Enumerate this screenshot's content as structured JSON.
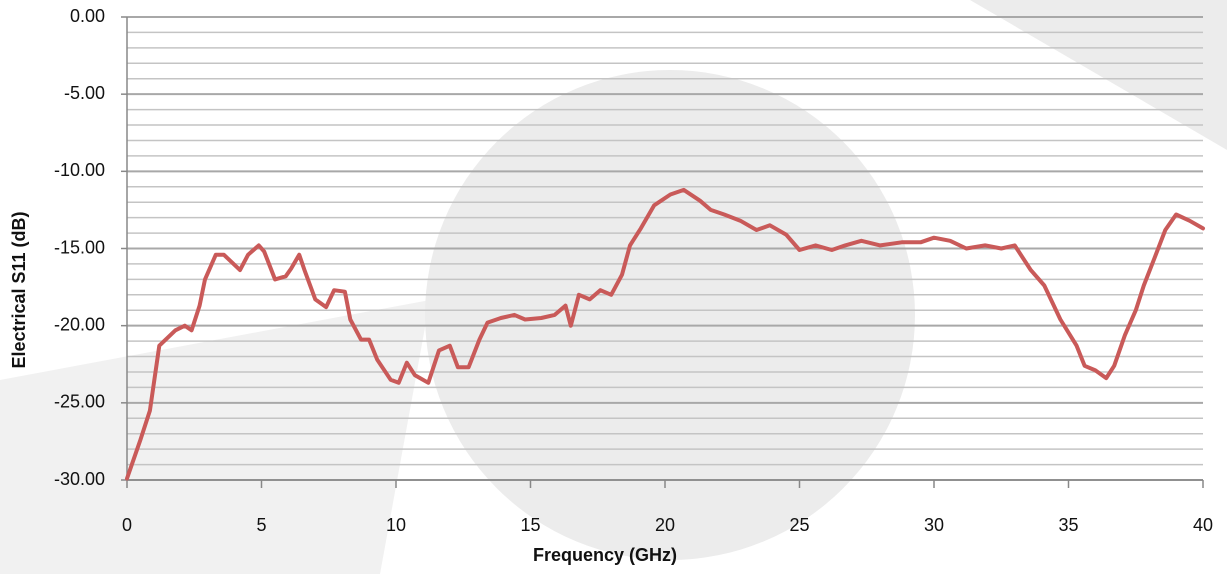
{
  "chart_data": {
    "type": "line",
    "x_label": "Frequency  (GHz)",
    "y_label": "Electrical S11 (dB)",
    "x": [
      0,
      0.5,
      0.85,
      1.2,
      1.8,
      2.15,
      2.4,
      2.7,
      2.9,
      3.3,
      3.6,
      4.2,
      4.5,
      4.9,
      5.1,
      5.5,
      5.9,
      6.1,
      6.4,
      6.6,
      7.0,
      7.4,
      7.7,
      8.1,
      8.3,
      8.7,
      9.0,
      9.3,
      9.8,
      10.1,
      10.4,
      10.7,
      11.2,
      11.6,
      12.0,
      12.3,
      12.7,
      13.1,
      13.4,
      13.9,
      14.4,
      14.8,
      15.4,
      15.9,
      16.3,
      16.5,
      16.8,
      17.2,
      17.6,
      18.0,
      18.4,
      18.7,
      19.1,
      19.6,
      20.2,
      20.7,
      21.3,
      21.7,
      22.2,
      22.8,
      23.4,
      23.9,
      24.5,
      25.0,
      25.6,
      26.2,
      26.7,
      27.3,
      28.0,
      28.8,
      29.5,
      30.0,
      30.6,
      31.2,
      31.9,
      32.5,
      33.0,
      33.6,
      34.1,
      34.7,
      35.3,
      35.6,
      36.0,
      36.4,
      36.7,
      37.1,
      37.5,
      37.8,
      38.2,
      38.6,
      39.0,
      39.5,
      40
    ],
    "values": [
      -29.9,
      -27.4,
      -25.5,
      -21.3,
      -20.3,
      -20.0,
      -20.3,
      -18.7,
      -17.0,
      -15.4,
      -15.4,
      -16.4,
      -15.4,
      -14.8,
      -15.2,
      -17.0,
      -16.8,
      -16.3,
      -15.4,
      -16.4,
      -18.3,
      -18.8,
      -17.7,
      -17.8,
      -19.6,
      -20.9,
      -20.9,
      -22.2,
      -23.5,
      -23.7,
      -22.4,
      -23.2,
      -23.7,
      -21.6,
      -21.3,
      -22.7,
      -22.7,
      -20.9,
      -19.8,
      -19.5,
      -19.3,
      -19.6,
      -19.5,
      -19.3,
      -18.7,
      -20.0,
      -18.0,
      -18.3,
      -17.7,
      -18.0,
      -16.7,
      -14.8,
      -13.7,
      -12.2,
      -11.5,
      -11.2,
      -11.9,
      -12.5,
      -12.8,
      -13.2,
      -13.8,
      -13.5,
      -14.1,
      -15.1,
      -14.8,
      -15.1,
      -14.8,
      -14.5,
      -14.8,
      -14.6,
      -14.6,
      -14.3,
      -14.5,
      -15.0,
      -14.8,
      -15.0,
      -14.8,
      -16.4,
      -17.4,
      -19.6,
      -21.3,
      -22.6,
      -22.9,
      -23.4,
      -22.6,
      -20.6,
      -19.0,
      -17.4,
      -15.6,
      -13.8,
      -12.8,
      -13.2,
      -13.7
    ],
    "color": "#c95a59",
    "xlim": [
      0,
      40
    ],
    "xticks": [
      0,
      5,
      10,
      15,
      20,
      25,
      30,
      35,
      40
    ],
    "ylim": [
      -30,
      0
    ],
    "yticks": [
      {
        "value": -30,
        "label": "-30.00"
      },
      {
        "value": -25,
        "label": "-25.00"
      },
      {
        "value": -20,
        "label": "-20.00"
      },
      {
        "value": -15,
        "label": "-15.00"
      },
      {
        "value": -10,
        "label": "-10.00"
      },
      {
        "value": -5,
        "label": "-5.00"
      },
      {
        "value": 0,
        "label": "0.00"
      }
    ],
    "grid": true,
    "minor_grid": true
  }
}
